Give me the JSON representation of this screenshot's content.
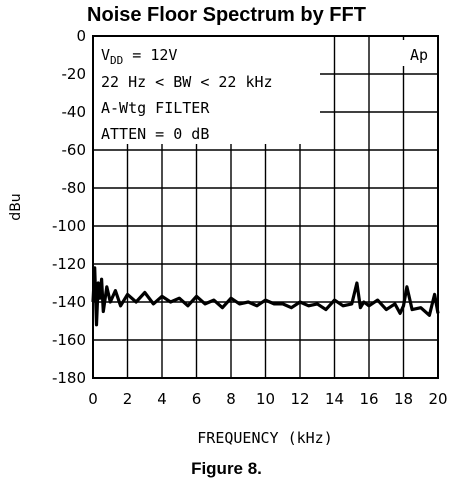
{
  "title": "Noise Floor Spectrum by FFT",
  "figure_caption": "Figure 8.",
  "chart_data": {
    "type": "line",
    "xlabel": "FREQUENCY (kHz)",
    "ylabel": "dBu",
    "xlim": [
      0,
      20
    ],
    "ylim": [
      -180,
      0
    ],
    "x_ticks": [
      "0",
      "2",
      "4",
      "6",
      "8",
      "10",
      "12",
      "14",
      "16",
      "18",
      "20"
    ],
    "y_ticks": [
      "0",
      "-20",
      "-40",
      "-60",
      "-80",
      "-100",
      "-120",
      "-140",
      "-160",
      "-180"
    ],
    "grid": true,
    "annotations": {
      "vdd_prefix": "V",
      "vdd_sub": "DD",
      "vdd_value": " = 12V",
      "bw": "22 Hz < BW < 22 kHz",
      "filter": "A-Wtg FILTER",
      "atten": "ATTEN = 0 dB",
      "vendor_mark": "Ap"
    },
    "series": [
      {
        "color": "#000000",
        "x": [
          0.0,
          0.1,
          0.2,
          0.3,
          0.4,
          0.5,
          0.6,
          0.8,
          1.0,
          1.3,
          1.6,
          2.0,
          2.5,
          3.0,
          3.5,
          4.0,
          4.5,
          5.0,
          5.5,
          6.0,
          6.5,
          7.0,
          7.5,
          8.0,
          8.5,
          9.0,
          9.5,
          10.0,
          10.5,
          11.0,
          11.5,
          12.0,
          12.5,
          13.0,
          13.5,
          14.0,
          14.5,
          15.0,
          15.3,
          15.5,
          15.7,
          16.0,
          16.5,
          17.0,
          17.5,
          17.8,
          18.0,
          18.2,
          18.5,
          19.0,
          19.5,
          19.8,
          20.0
        ],
        "y": [
          -140,
          -122,
          -152,
          -130,
          -138,
          -128,
          -145,
          -132,
          -140,
          -134,
          -142,
          -136,
          -140,
          -135,
          -141,
          -137,
          -140,
          -138,
          -142,
          -137,
          -141,
          -139,
          -143,
          -138,
          -141,
          -140,
          -142,
          -139,
          -141,
          -141,
          -143,
          -140,
          -142,
          -141,
          -144,
          -139,
          -142,
          -141,
          -130,
          -143,
          -140,
          -142,
          -139,
          -144,
          -141,
          -146,
          -142,
          -132,
          -144,
          -143,
          -147,
          -136,
          -146
        ]
      }
    ]
  }
}
